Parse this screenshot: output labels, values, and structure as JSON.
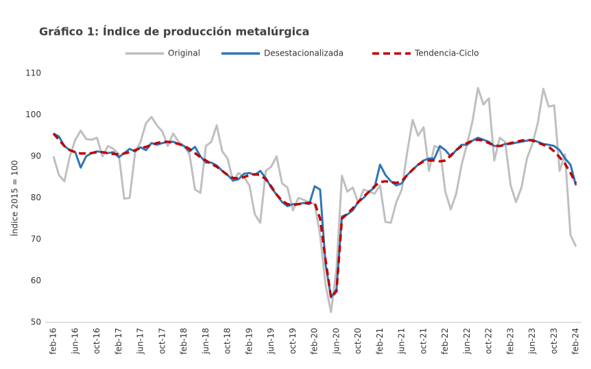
{
  "chart_data": {
    "type": "line",
    "title": "Gráfico 1: Índice de producción metalúrgica",
    "y_label": "Índice 2015 = 100",
    "ylim": [
      50,
      110
    ],
    "yticks": [
      50,
      60,
      70,
      80,
      90,
      100,
      110
    ],
    "grid": false,
    "legend": "top",
    "categories": [
      "feb-16",
      null,
      null,
      null,
      "jun-16",
      null,
      null,
      null,
      "oct-16",
      null,
      null,
      null,
      "feb-17",
      null,
      null,
      null,
      "jun-17",
      null,
      null,
      null,
      "oct-17",
      null,
      null,
      null,
      "feb-18",
      null,
      null,
      null,
      "jun-18",
      null,
      null,
      null,
      "oct-18",
      null,
      null,
      null,
      "feb-19",
      null,
      null,
      null,
      "jun-19",
      null,
      null,
      null,
      "oct-19",
      null,
      null,
      null,
      "feb-20",
      null,
      null,
      null,
      "jun-20",
      null,
      null,
      null,
      "oct-20",
      null,
      null,
      null,
      "feb-21",
      null,
      null,
      null,
      "jun-21",
      null,
      null,
      null,
      "oct-21",
      null,
      null,
      null,
      "feb-22",
      null,
      null,
      null,
      "jun-22",
      null,
      null,
      null,
      "oct-22",
      null,
      null,
      null,
      "feb-23",
      null,
      null,
      null,
      "jun-23",
      null,
      null,
      null,
      "oct-23",
      null,
      null,
      null,
      "feb-24"
    ],
    "series": [
      {
        "name": "Original",
        "color": "#bfbfbf",
        "dash": false,
        "values": [
          90,
          85.5,
          84,
          90,
          94,
          96.2,
          94.2,
          94,
          94.5,
          90,
          92.5,
          91.8,
          90.5,
          79.8,
          80,
          91,
          93.5,
          98,
          99.5,
          97.5,
          96,
          92.5,
          95.5,
          93.5,
          92.5,
          90.5,
          82,
          81.2,
          92.5,
          93.5,
          97.5,
          91.2,
          89.5,
          84,
          86,
          85,
          83,
          76,
          74,
          86.5,
          87.5,
          90,
          83.5,
          82.5,
          77,
          80,
          79.5,
          79,
          78.5,
          71,
          59,
          52.5,
          63,
          85.3,
          81.5,
          82.5,
          78.8,
          82,
          81.5,
          81,
          83,
          74.2,
          74,
          79,
          82,
          91,
          98.8,
          95,
          97,
          86.5,
          92.5,
          92,
          81.5,
          77.2,
          81,
          88,
          93,
          98.5,
          106.5,
          102.5,
          104,
          89,
          94.5,
          93.5,
          83,
          79,
          82.5,
          89.5,
          93,
          98,
          106.3,
          102,
          102.3,
          86.5,
          90.5,
          71,
          68.3
        ]
      },
      {
        "name": "Desestacionalizada",
        "color": "#2e75b6",
        "dash": false,
        "values": [
          95.5,
          94.8,
          92.5,
          91.5,
          91,
          87.3,
          90,
          90.8,
          91.2,
          91,
          90.8,
          91,
          89.8,
          90.8,
          91.8,
          91.2,
          92.2,
          91.5,
          93.2,
          92.8,
          93.2,
          93.5,
          93.5,
          93,
          92.5,
          91.2,
          92.3,
          90,
          88.5,
          88.5,
          87.8,
          86.5,
          85.5,
          84.2,
          84.5,
          85.8,
          86,
          85.5,
          86.5,
          84.8,
          82.5,
          80.8,
          79,
          78,
          78.5,
          78.5,
          78.8,
          78.5,
          82.8,
          82,
          64,
          56,
          58,
          75.5,
          76,
          77,
          79,
          80,
          81.5,
          82.5,
          88,
          85.5,
          84,
          83,
          83.5,
          85.5,
          86.8,
          88,
          89,
          89.5,
          89.5,
          92.5,
          91.5,
          90,
          91.5,
          92.8,
          92.8,
          93.8,
          94.5,
          94,
          93.5,
          92.5,
          92.5,
          93,
          93,
          93.3,
          93.5,
          93.8,
          94,
          93.5,
          93,
          92.8,
          92.5,
          91.5,
          89.5,
          88,
          83
        ]
      },
      {
        "name": "Tendencia-Ciclo",
        "color": "#c00000",
        "dash": true,
        "values": [
          95.5,
          94,
          92.5,
          91.5,
          91,
          90.7,
          90.7,
          90.8,
          91,
          91,
          90.8,
          90.6,
          90.5,
          90.7,
          91,
          91.5,
          92,
          92.3,
          92.8,
          93.2,
          93.5,
          93.5,
          93.3,
          93,
          92.5,
          91.8,
          90.8,
          89.8,
          89,
          88.2,
          87.5,
          86.5,
          85.5,
          84.8,
          84.7,
          85,
          85.5,
          85.7,
          85.5,
          84.5,
          82.8,
          80.8,
          79.3,
          78.5,
          78.3,
          78.5,
          78.7,
          78.8,
          78.8,
          75,
          65,
          56,
          57.5,
          75,
          76.2,
          77.5,
          79,
          80.3,
          81.5,
          82.8,
          83.8,
          84,
          83.8,
          83.6,
          84,
          85.5,
          86.8,
          88,
          88.8,
          89,
          89,
          88.8,
          89,
          90.2,
          91.5,
          92.5,
          93.2,
          93.8,
          94,
          93.8,
          93.2,
          92.6,
          92.5,
          92.8,
          93.2,
          93.5,
          93.8,
          94,
          93.8,
          93.3,
          92.8,
          92.3,
          91.2,
          89.8,
          88.2,
          86,
          83.5
        ]
      }
    ]
  }
}
